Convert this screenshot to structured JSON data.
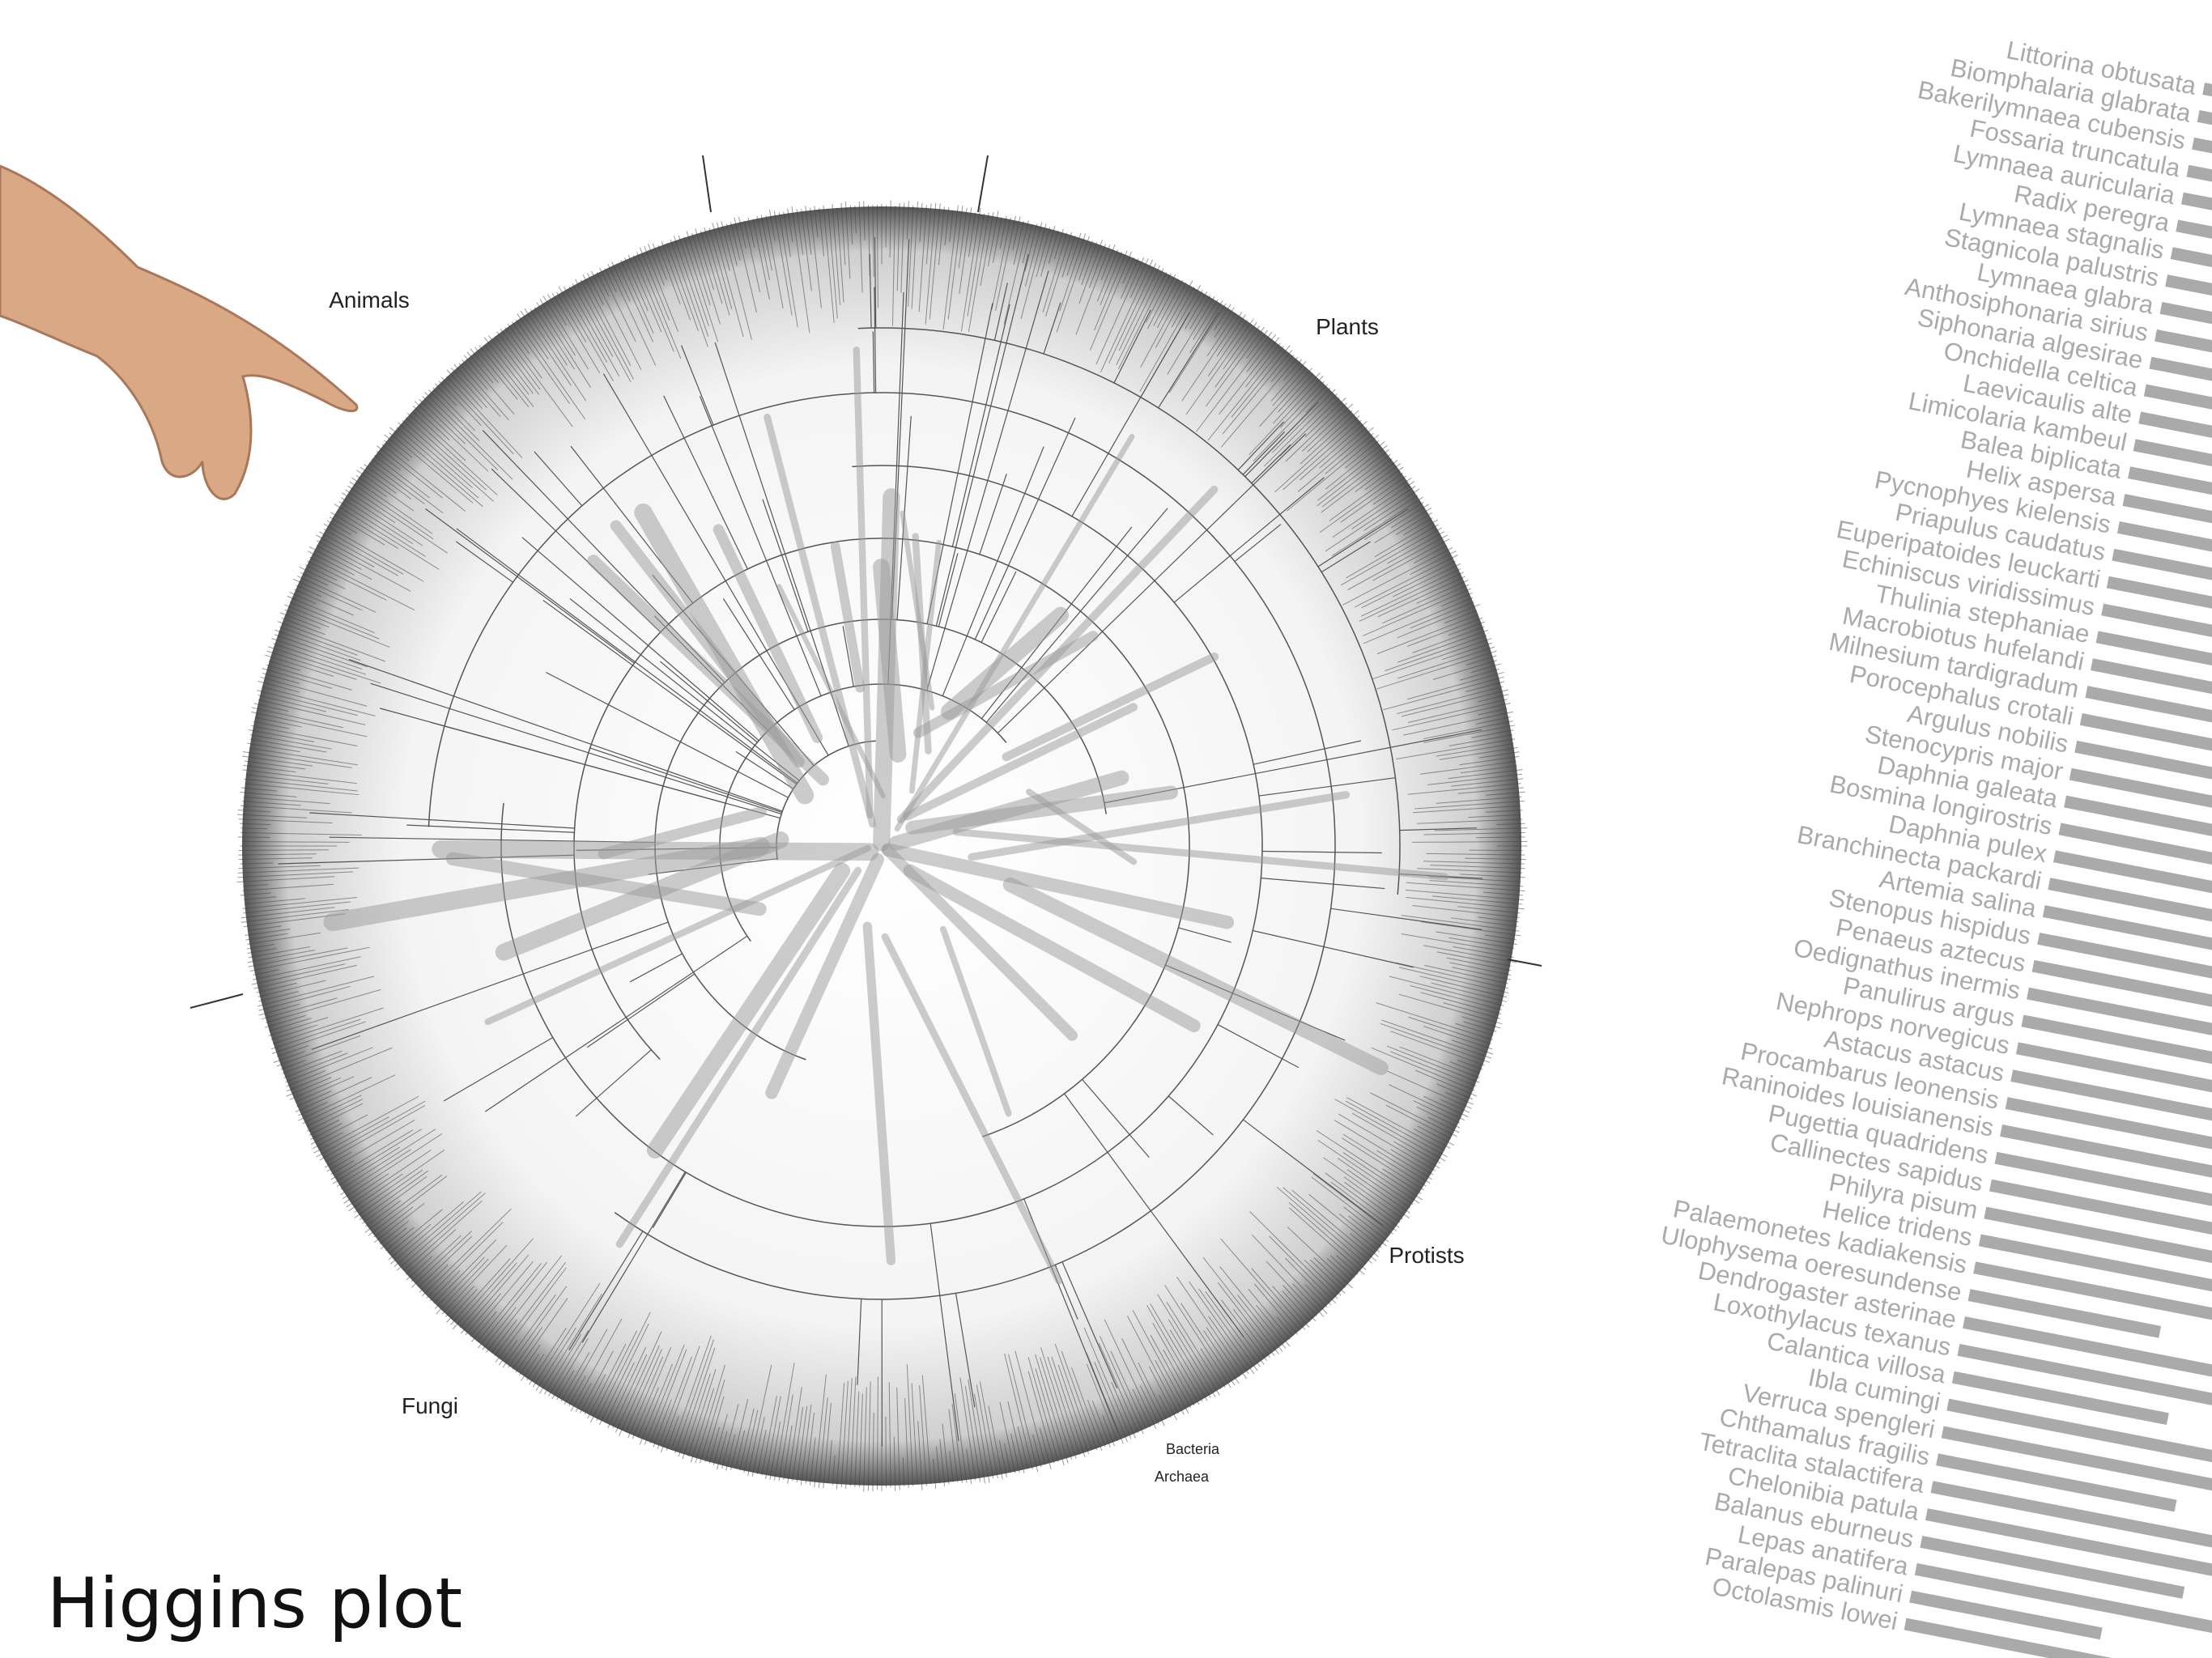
{
  "title": "Higgins plot",
  "tree": {
    "labels": {
      "animals": "Animals",
      "plants": "Plants",
      "protists": "Protists",
      "fungi": "Fungi",
      "bacteria": "Bacteria",
      "archaea": "Archaea"
    }
  },
  "species": [
    "Littorina obtusata",
    "Biomphalaria glabrata",
    "Bakerilymnaea cubensis",
    "Fossaria truncatula",
    "Lymnaea auricularia",
    "Radix peregra",
    "Lymnaea stagnalis",
    "Stagnicola palustris",
    "Lymnaea glabra",
    "Anthosiphonaria sirius",
    "Siphonaria algesirae",
    "Onchidella celtica",
    "Laevicaulis alte",
    "Limicolaria kambeul",
    "Balea biplicata",
    "Helix aspersa",
    "Pycnophyes kielensis",
    "Priapulus caudatus",
    "Euperipatoides leuckarti",
    "Echiniscus viridissimus",
    "Thulinia stephaniae",
    "Macrobiotus hufelandi",
    "Milnesium tardigradum",
    "Porocephalus crotali",
    "Argulus nobilis",
    "Stenocypris major",
    "Daphnia galeata",
    "Bosmina longirostris",
    "Daphnia pulex",
    "Branchinecta packardi",
    "Artemia salina",
    "Stenopus hispidus",
    "Penaeus aztecus",
    "Oedignathus inermis",
    "Panulirus argus",
    "Nephrops norvegicus",
    "Astacus astacus",
    "Procambarus leonensis",
    "Raninoides louisianensis",
    "Pugettia quadridens",
    "Callinectes sapidus",
    "Philyra pisum",
    "Helice tridens",
    "Palaemonetes kadiakensis",
    "Ulophysema oeresundense",
    "Dendrogaster asterinae",
    "Loxothylacus texanus",
    "Calantica villosa",
    "Ibla cumingi",
    "Verruca spengleri",
    "Chthamalus fragilis",
    "Tetraclita stalactifera",
    "Chelonibia patula",
    "Balanus eburneus",
    "Lepas anatifera",
    "Paralepas palinuri",
    "Octolasmis lowei"
  ]
}
